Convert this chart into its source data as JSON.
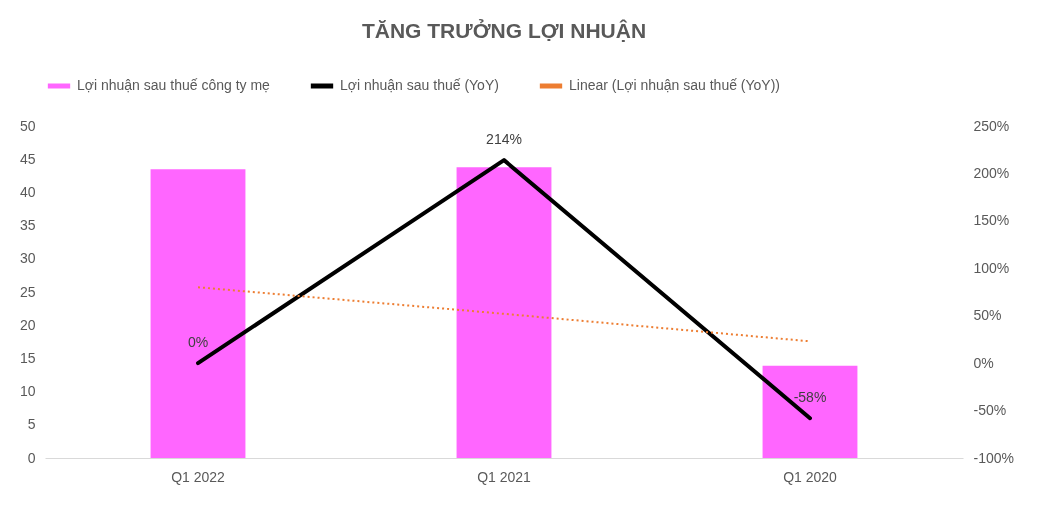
{
  "chart_data": {
    "type": "bar",
    "title": "TĂNG TRƯỞNG LỢI NHUẬN",
    "categories": [
      "Q1 2022",
      "Q1 2021",
      "Q1 2020"
    ],
    "series": [
      {
        "name": "Lợi nhuận sau thuế công ty mẹ",
        "color": "#ff66ff",
        "values": [
          43.5,
          43.8,
          13.9
        ]
      },
      {
        "name": "Lợi nhuận sau thuế (YoY)",
        "type": "line",
        "axis": "y2",
        "color": "#000000",
        "line_style": "solid",
        "values": [
          0,
          214,
          -58
        ],
        "value_labels": [
          "0%",
          "214%",
          "-58%"
        ]
      },
      {
        "name": "Linear (Lợi nhuận sau thuế (YoY))",
        "type": "line",
        "axis": "y2",
        "color": "#ed7d31",
        "line_style": "dotted",
        "x": [
          "Q1 2022",
          "Q1 2021",
          "Q1 2020"
        ],
        "values": [
          80,
          52,
          23
        ]
      }
    ],
    "ylim": [
      0,
      50
    ],
    "yticks": [
      0,
      5,
      10,
      15,
      20,
      25,
      30,
      35,
      40,
      45,
      50
    ],
    "y2lim": [
      -100,
      250
    ],
    "y2ticks": [
      {
        "value": -100,
        "label": "-100%"
      },
      {
        "value": -50,
        "label": "-50%"
      },
      {
        "value": 0,
        "label": "0%"
      },
      {
        "value": 50,
        "label": "50%"
      },
      {
        "value": 100,
        "label": "100%"
      },
      {
        "value": 150,
        "label": "150%"
      },
      {
        "value": 200,
        "label": "200%"
      },
      {
        "value": 250,
        "label": "250%"
      }
    ],
    "legend": "top"
  }
}
